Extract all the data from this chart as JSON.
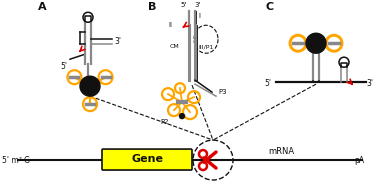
{
  "bg_color": "#ffffff",
  "label_A": "A",
  "label_B": "B",
  "label_C": "C",
  "label_II": "II",
  "label_I": "I",
  "label_CM": "CM",
  "label_III_P1": "III/P1",
  "label_P2": "P2",
  "label_P3": "P3",
  "mrna_left": "5' m⁷ G",
  "mrna_gene": "Gene",
  "mrna_label": "mRNA",
  "mrna_right": "pA",
  "orange_color": "#FFA500",
  "black_color": "#111111",
  "red_color": "#DD0000",
  "gray_color": "#888888",
  "yellow_color": "#FFFF00",
  "lw_thick": 2.2,
  "lw_med": 1.6,
  "lw_thin": 1.1
}
